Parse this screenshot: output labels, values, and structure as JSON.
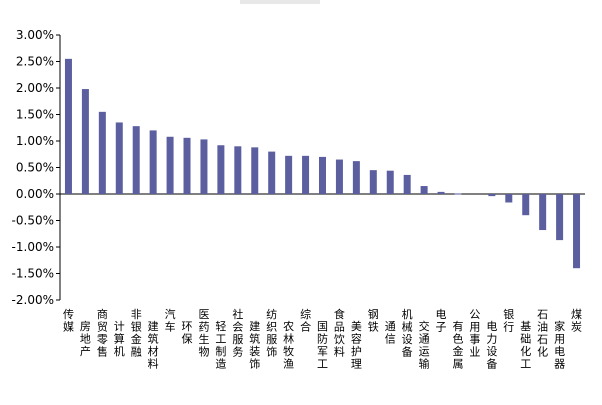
{
  "colors": {
    "bar": "#5b5fa0",
    "axis": "#000000",
    "tick_text": "#000000"
  },
  "chart_data": {
    "type": "bar",
    "title": "",
    "xlabel": "",
    "ylabel": "",
    "ylim": [
      -2.0,
      3.0
    ],
    "y_ticks": [
      "3.00%",
      "2.50%",
      "2.00%",
      "1.50%",
      "1.00%",
      "0.50%",
      "0.00%",
      "-0.50%",
      "-1.00%",
      "-1.50%",
      "-2.00%"
    ],
    "grid": false,
    "legend": "none",
    "categories": [
      "传媒",
      "房地产",
      "商贸零售",
      "计算机",
      "非银金融",
      "建筑材料",
      "汽车",
      "环保",
      "医药生物",
      "轻工制造",
      "社会服务",
      "建筑装饰",
      "纺织服饰",
      "农林牧渔",
      "综合",
      "国防军工",
      "食品饮料",
      "美容护理",
      "钢铁",
      "通信",
      "机械设备",
      "交通运输",
      "电子",
      "有色金属",
      "公用事业",
      "电力设备",
      "银行",
      "基础化工",
      "石油石化",
      "家用电器",
      "煤炭"
    ],
    "values": [
      2.55,
      1.98,
      1.55,
      1.35,
      1.28,
      1.2,
      1.08,
      1.06,
      1.03,
      0.92,
      0.9,
      0.88,
      0.8,
      0.72,
      0.72,
      0.7,
      0.65,
      0.62,
      0.45,
      0.44,
      0.36,
      0.15,
      0.04,
      0.01,
      0.0,
      -0.04,
      -0.16,
      -0.4,
      -0.68,
      -0.87,
      -1.4
    ]
  }
}
